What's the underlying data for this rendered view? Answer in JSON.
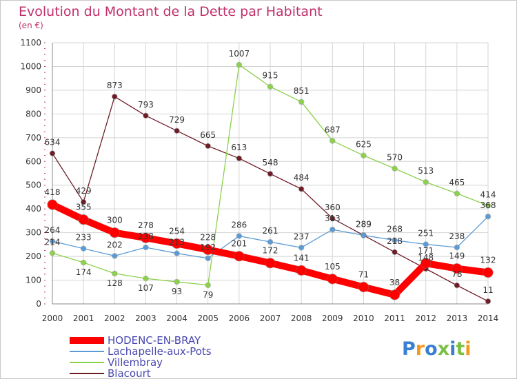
{
  "chart_data": {
    "type": "line",
    "title": "Evolution du Montant de la Dette par Habitant",
    "subtitle": "(en €)",
    "x": [
      "2000",
      "2001",
      "2002",
      "2003",
      "2004",
      "2005",
      "2006",
      "2007",
      "2008",
      "2009",
      "2010",
      "2011",
      "2012",
      "2013",
      "2014"
    ],
    "ylim": [
      0,
      1100
    ],
    "yticks": [
      0,
      100,
      200,
      300,
      400,
      500,
      600,
      700,
      800,
      900,
      1000,
      1100
    ],
    "grid": true,
    "legend_position": "bottom-left",
    "series": [
      {
        "name": "Blacourt",
        "color": "#6e1c26",
        "values": [
          634,
          429,
          873,
          793,
          729,
          665,
          613,
          548,
          484,
          360,
          289,
          218,
          148,
          78,
          11
        ]
      },
      {
        "name": "Villembray",
        "color": "#8bd14a",
        "values": [
          214,
          174,
          128,
          107,
          93,
          79,
          1007,
          915,
          851,
          687,
          625,
          570,
          513,
          465,
          414
        ]
      },
      {
        "name": "Lachapelle-aux-Pots",
        "color": "#5b9bd5",
        "values": [
          264,
          233,
          202,
          238,
          213,
          192,
          286,
          261,
          237,
          313,
          289,
          268,
          251,
          238,
          368
        ]
      },
      {
        "name": "HODENC-EN-BRAY",
        "color": "#ff0000",
        "values": [
          418,
          355,
          300,
          278,
          254,
          228,
          201,
          172,
          141,
          105,
          71,
          38,
          171,
          149,
          132
        ]
      }
    ],
    "data_labels": {
      "Blacourt": [
        "634",
        "429",
        "873",
        "793",
        "729",
        "665",
        "613",
        "548",
        "484",
        "360",
        "289",
        "218",
        "148",
        "78",
        "11"
      ],
      "Villembray": [
        "214",
        "174",
        "128",
        "107",
        "93",
        "79",
        "1007",
        "915",
        "851",
        "687",
        "625",
        "570",
        "513",
        "465",
        "414"
      ],
      "Lachapelle-aux-Pots": [
        "264",
        "233",
        "202",
        "238",
        "213",
        "192",
        "286",
        "261",
        "237",
        "313",
        "289",
        "268",
        "251",
        "238",
        "368"
      ],
      "HODENC-EN-BRAY": [
        "418",
        "355",
        "300",
        "278",
        "254",
        "228",
        "201",
        "172",
        "141",
        "105",
        "71",
        "38",
        "171",
        "149",
        "132"
      ]
    }
  },
  "legend": {
    "items": [
      {
        "label": "HODENC-EN-BRAY",
        "color": "#ff0000"
      },
      {
        "label": "Lachapelle-aux-Pots",
        "color": "#5b9bd5"
      },
      {
        "label": "Villembray",
        "color": "#8bd14a"
      },
      {
        "label": "Blacourt",
        "color": "#6e1c26"
      }
    ]
  },
  "logo": {
    "text": "Proxiti",
    "colors": [
      "#3a7fd4",
      "#f39a1e",
      "#3a7fd4",
      "#7bc043",
      "#3a7fd4",
      "#7bc043",
      "#f39a1e"
    ]
  }
}
